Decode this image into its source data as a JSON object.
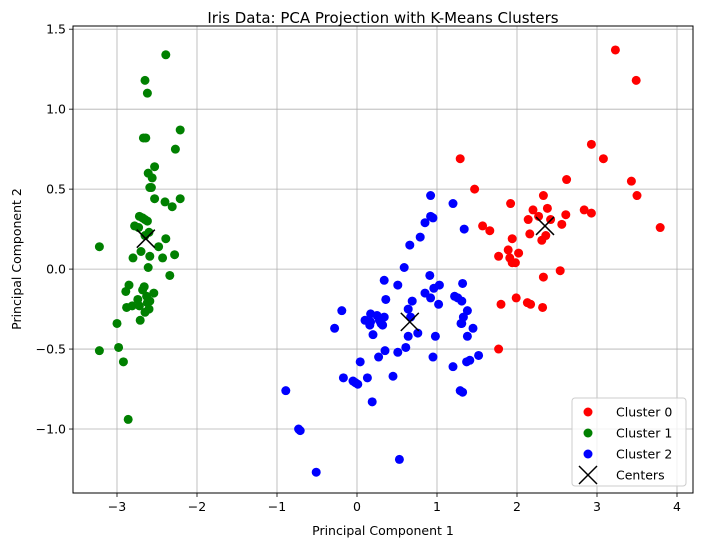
{
  "chart_data": {
    "type": "scatter",
    "title": "Iris Data: PCA Projection with K-Means Clusters",
    "xlabel": "Principal Component 1",
    "ylabel": "Principal Component 2",
    "xlim": [
      -3.55,
      4.2
    ],
    "ylim": [
      -1.4,
      1.52
    ],
    "xticks": [
      -3,
      -2,
      -1,
      0,
      1,
      2,
      3,
      4
    ],
    "yticks": [
      -1.0,
      -0.5,
      0.0,
      0.5,
      1.0,
      1.5
    ],
    "xtick_labels": [
      "−3",
      "−2",
      "−1",
      "0",
      "1",
      "2",
      "3",
      "4"
    ],
    "ytick_labels": [
      "−1.0",
      "−0.5",
      "0.0",
      "0.5",
      "1.0",
      "1.5"
    ],
    "grid": true,
    "legend_position": "bottom-right",
    "series": [
      {
        "name": "Cluster 0",
        "color": "#ff0000",
        "marker": "circle",
        "points": [
          [
            3.23,
            1.37
          ],
          [
            3.49,
            1.18
          ],
          [
            2.93,
            0.78
          ],
          [
            3.08,
            0.69
          ],
          [
            1.29,
            0.69
          ],
          [
            3.43,
            0.55
          ],
          [
            2.62,
            0.56
          ],
          [
            3.5,
            0.46
          ],
          [
            2.84,
            0.37
          ],
          [
            2.93,
            0.35
          ],
          [
            1.47,
            0.5
          ],
          [
            2.33,
            0.46
          ],
          [
            2.38,
            0.38
          ],
          [
            2.2,
            0.37
          ],
          [
            1.92,
            0.41
          ],
          [
            2.14,
            0.31
          ],
          [
            2.27,
            0.33
          ],
          [
            2.42,
            0.31
          ],
          [
            2.61,
            0.34
          ],
          [
            3.79,
            0.26
          ],
          [
            2.56,
            0.28
          ],
          [
            1.57,
            0.27
          ],
          [
            1.66,
            0.24
          ],
          [
            2.16,
            0.22
          ],
          [
            2.36,
            0.21
          ],
          [
            1.94,
            0.19
          ],
          [
            2.31,
            0.18
          ],
          [
            1.89,
            0.12
          ],
          [
            2.02,
            0.1
          ],
          [
            1.91,
            0.07
          ],
          [
            1.77,
            0.08
          ],
          [
            1.94,
            0.04
          ],
          [
            1.98,
            0.04
          ],
          [
            2.54,
            -0.01
          ],
          [
            2.33,
            -0.05
          ],
          [
            1.99,
            -0.18
          ],
          [
            1.8,
            -0.22
          ],
          [
            2.13,
            -0.21
          ],
          [
            2.17,
            -0.22
          ],
          [
            2.32,
            -0.24
          ],
          [
            1.77,
            -0.5
          ]
        ]
      },
      {
        "name": "Cluster 1",
        "color": "#008000",
        "marker": "circle",
        "points": [
          [
            -2.39,
            1.34
          ],
          [
            -2.65,
            1.18
          ],
          [
            -2.62,
            1.1
          ],
          [
            -2.21,
            0.87
          ],
          [
            -2.64,
            0.82
          ],
          [
            -2.67,
            0.82
          ],
          [
            -2.27,
            0.75
          ],
          [
            -2.53,
            0.64
          ],
          [
            -2.61,
            0.6
          ],
          [
            -2.56,
            0.57
          ],
          [
            -2.57,
            0.51
          ],
          [
            -2.59,
            0.51
          ],
          [
            -2.53,
            0.44
          ],
          [
            -2.21,
            0.44
          ],
          [
            -2.4,
            0.42
          ],
          [
            -2.31,
            0.39
          ],
          [
            -2.72,
            0.33
          ],
          [
            -2.68,
            0.32
          ],
          [
            -2.65,
            0.31
          ],
          [
            -2.62,
            0.3
          ],
          [
            -2.78,
            0.27
          ],
          [
            -2.73,
            0.26
          ],
          [
            -2.6,
            0.23
          ],
          [
            -2.65,
            0.21
          ],
          [
            -2.39,
            0.19
          ],
          [
            -2.48,
            0.14
          ],
          [
            -3.22,
            0.14
          ],
          [
            -2.7,
            0.11
          ],
          [
            -2.59,
            0.08
          ],
          [
            -2.28,
            0.09
          ],
          [
            -2.8,
            0.07
          ],
          [
            -2.43,
            0.07
          ],
          [
            -2.61,
            0.01
          ],
          [
            -2.34,
            -0.04
          ],
          [
            -2.85,
            -0.1
          ],
          [
            -2.66,
            -0.11
          ],
          [
            -2.68,
            -0.13
          ],
          [
            -2.89,
            -0.14
          ],
          [
            -2.63,
            -0.17
          ],
          [
            -2.54,
            -0.15
          ],
          [
            -2.74,
            -0.19
          ],
          [
            -2.62,
            -0.21
          ],
          [
            -2.59,
            -0.2
          ],
          [
            -2.81,
            -0.23
          ],
          [
            -2.72,
            -0.23
          ],
          [
            -2.88,
            -0.24
          ],
          [
            -2.6,
            -0.25
          ],
          [
            -2.71,
            -0.32
          ],
          [
            -2.65,
            -0.27
          ],
          [
            -3.0,
            -0.34
          ],
          [
            -2.98,
            -0.49
          ],
          [
            -3.22,
            -0.51
          ],
          [
            -2.92,
            -0.58
          ],
          [
            -2.86,
            -0.94
          ]
        ]
      },
      {
        "name": "Cluster 2",
        "color": "#0000ff",
        "marker": "circle",
        "points": [
          [
            0.92,
            0.46
          ],
          [
            1.2,
            0.41
          ],
          [
            0.92,
            0.33
          ],
          [
            0.95,
            0.32
          ],
          [
            0.85,
            0.29
          ],
          [
            1.34,
            0.25
          ],
          [
            0.79,
            0.2
          ],
          [
            0.66,
            0.15
          ],
          [
            0.59,
            0.01
          ],
          [
            0.91,
            -0.04
          ],
          [
            1.03,
            -0.1
          ],
          [
            0.34,
            -0.07
          ],
          [
            0.51,
            -0.1
          ],
          [
            1.32,
            -0.09
          ],
          [
            0.96,
            -0.12
          ],
          [
            0.85,
            -0.15
          ],
          [
            1.22,
            -0.17
          ],
          [
            1.26,
            -0.18
          ],
          [
            0.92,
            -0.18
          ],
          [
            1.31,
            -0.2
          ],
          [
            0.69,
            -0.2
          ],
          [
            0.36,
            -0.19
          ],
          [
            1.02,
            -0.22
          ],
          [
            0.64,
            -0.25
          ],
          [
            1.38,
            -0.26
          ],
          [
            -0.19,
            -0.26
          ],
          [
            0.17,
            -0.28
          ],
          [
            0.25,
            -0.29
          ],
          [
            0.34,
            -0.3
          ],
          [
            0.28,
            -0.32
          ],
          [
            1.33,
            -0.3
          ],
          [
            0.67,
            -0.3
          ],
          [
            0.1,
            -0.32
          ],
          [
            0.17,
            -0.33
          ],
          [
            1.3,
            -0.34
          ],
          [
            1.31,
            -0.34
          ],
          [
            0.16,
            -0.35
          ],
          [
            0.3,
            -0.34
          ],
          [
            0.32,
            -0.35
          ],
          [
            -0.28,
            -0.37
          ],
          [
            1.45,
            -0.37
          ],
          [
            0.76,
            -0.4
          ],
          [
            0.64,
            -0.42
          ],
          [
            0.2,
            -0.41
          ],
          [
            0.98,
            -0.42
          ],
          [
            1.38,
            -0.42
          ],
          [
            0.61,
            -0.49
          ],
          [
            0.51,
            -0.52
          ],
          [
            1.52,
            -0.54
          ],
          [
            0.35,
            -0.51
          ],
          [
            0.27,
            -0.55
          ],
          [
            0.95,
            -0.55
          ],
          [
            0.04,
            -0.58
          ],
          [
            1.37,
            -0.58
          ],
          [
            0.45,
            -0.67
          ],
          [
            0.13,
            -0.68
          ],
          [
            1.2,
            -0.61
          ],
          [
            -0.17,
            -0.68
          ],
          [
            1.41,
            -0.57
          ],
          [
            -0.05,
            -0.7
          ],
          [
            -0.02,
            -0.71
          ],
          [
            0.01,
            -0.72
          ],
          [
            1.29,
            -0.76
          ],
          [
            1.32,
            -0.77
          ],
          [
            -0.89,
            -0.76
          ],
          [
            0.19,
            -0.83
          ],
          [
            -0.73,
            -1.0
          ],
          [
            -0.71,
            -1.01
          ],
          [
            -0.51,
            -1.27
          ],
          [
            0.53,
            -1.19
          ]
        ]
      },
      {
        "name": "Centers",
        "color": "#000000",
        "marker": "x",
        "points": [
          [
            2.35,
            0.27
          ],
          [
            -2.64,
            0.19
          ],
          [
            0.66,
            -0.33
          ]
        ]
      }
    ]
  }
}
